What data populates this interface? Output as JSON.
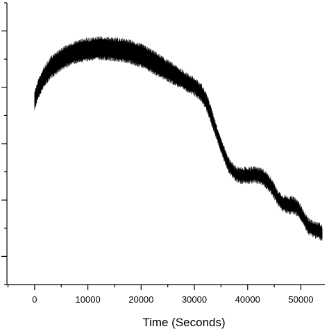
{
  "chart_data": {
    "type": "line",
    "title": "",
    "xlabel": "Time (Seconds)",
    "ylabel": "",
    "xlim": [
      -5200,
      54500
    ],
    "ylim": [
      0,
      100
    ],
    "x_ticks": [
      0,
      10000,
      20000,
      30000,
      40000,
      50000
    ],
    "x_minor_step": 5000,
    "y_major_ticks": [
      10,
      30,
      50,
      70,
      90
    ],
    "y_minor_ticks": [
      0,
      20,
      40,
      60,
      80,
      100
    ],
    "grid": false,
    "legend": "none",
    "series": [
      {
        "color": "#000000",
        "x": [
          0,
          500,
          1500,
          3000,
          5000,
          7000,
          9000,
          10000,
          12000,
          14000,
          16000,
          18000,
          20000,
          22000,
          24000,
          26000,
          28000,
          30000,
          31500,
          32500,
          33500,
          34500,
          35500,
          36500,
          37500,
          38500,
          40000,
          41500,
          43000,
          44500,
          45500,
          46500,
          47500,
          48500,
          49500,
          50500,
          51500,
          52500,
          53500,
          54000
        ],
        "y_low": [
          63,
          66.5,
          70.5,
          74.5,
          77.5,
          79.5,
          80.5,
          80.8,
          81.2,
          81.0,
          80.5,
          79.8,
          78.5,
          76.5,
          74.5,
          72.5,
          70.5,
          68.5,
          66.0,
          62.0,
          56.5,
          51.0,
          45.5,
          41.0,
          38.5,
          37.3,
          37.3,
          37.5,
          36.5,
          33.5,
          30.0,
          27.5,
          26.5,
          26.5,
          25.5,
          22.5,
          19.0,
          18.0,
          17.5,
          16.5
        ],
        "y_high": [
          67,
          70.5,
          75.0,
          79.5,
          82.5,
          84.5,
          85.8,
          86.0,
          86.6,
          86.4,
          86.0,
          85.3,
          84.0,
          82.0,
          79.5,
          77.0,
          74.5,
          72.0,
          69.5,
          65.5,
          59.5,
          53.5,
          48.0,
          43.5,
          41.0,
          40.0,
          40.3,
          40.5,
          39.5,
          36.5,
          32.5,
          30.5,
          30.0,
          29.8,
          28.5,
          25.0,
          22.0,
          21.0,
          20.5,
          19.5
        ]
      }
    ]
  }
}
